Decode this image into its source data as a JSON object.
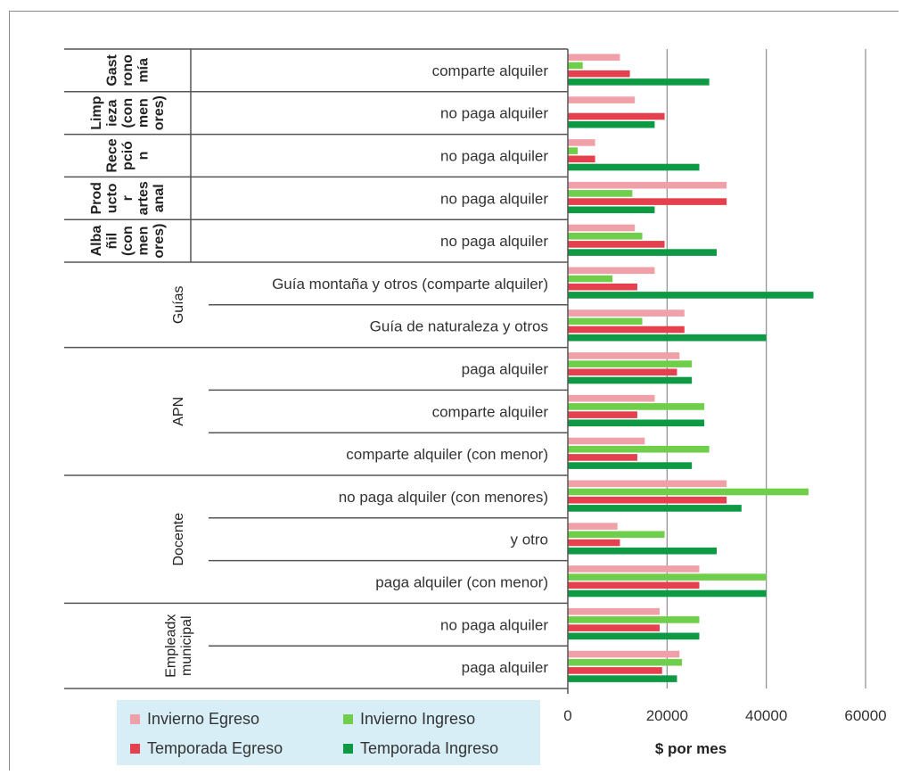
{
  "chart_data": {
    "type": "bar",
    "orientation": "horizontal",
    "xlabel": "$ por mes",
    "xlim": [
      0,
      60000
    ],
    "xticks": [
      0,
      20000,
      40000,
      60000
    ],
    "grid": true,
    "legend_placement": "bottom-left",
    "groups": [
      {
        "label": "Gast rono mía",
        "lines": [
          "Gast",
          "rono",
          "mía"
        ],
        "rows": 1
      },
      {
        "label": "Limp ieza (con men ores)",
        "lines": [
          "Limp",
          "ieza",
          "(con",
          "men",
          "ores)"
        ],
        "rows": 1
      },
      {
        "label": "Rece pció n",
        "lines": [
          "Rece",
          "pció",
          "n"
        ],
        "rows": 1
      },
      {
        "label": "Prod ucto r artes anal",
        "lines": [
          "Prod",
          "ucto",
          "r",
          "artes",
          "anal"
        ],
        "rows": 1
      },
      {
        "label": "Alba ñil (con men ores)",
        "lines": [
          "Alba",
          "ñil",
          "(con",
          "men",
          "ores)"
        ],
        "rows": 1
      },
      {
        "label": "Guías",
        "lines": [
          "Guías"
        ],
        "rows": 2
      },
      {
        "label": "APN",
        "lines": [
          "APN"
        ],
        "rows": 3
      },
      {
        "label": "Docente",
        "lines": [
          "Docente"
        ],
        "rows": 3
      },
      {
        "label": "Empleadx municipal",
        "lines": [
          "Empleadx",
          "municipal"
        ],
        "rows": 2
      }
    ],
    "categories": [
      "comparte alquiler",
      "no paga alquiler",
      "no paga alquiler",
      "no paga alquiler",
      "no paga alquiler",
      "Guía montaña y otros (comparte alquiler)",
      "Guía de naturaleza y otros",
      "paga alquiler",
      "comparte alquiler",
      "comparte alquiler (con menor)",
      "no paga alquiler (con menores)",
      "y otro",
      "paga alquiler (con menor)",
      "no paga alquiler",
      "paga alquiler"
    ],
    "series": [
      {
        "name": "Invierno Egreso",
        "color": "#f0a0a8",
        "values": [
          10500,
          13500,
          5500,
          32000,
          13500,
          17500,
          23500,
          22500,
          17500,
          15500,
          32000,
          10000,
          26500,
          18500,
          22500
        ]
      },
      {
        "name": "Invierno Ingreso",
        "color": "#6fce4a",
        "values": [
          3000,
          0,
          2000,
          13000,
          15000,
          9000,
          15000,
          25000,
          27500,
          28500,
          48500,
          19500,
          40000,
          26500,
          23000
        ]
      },
      {
        "name": "Temporada Egreso",
        "color": "#e5404e",
        "values": [
          12500,
          19500,
          5500,
          32000,
          19500,
          14000,
          23500,
          22000,
          14000,
          14000,
          32000,
          10500,
          26500,
          18500,
          19000
        ]
      },
      {
        "name": "Temporada Ingreso",
        "color": "#0e9a45",
        "values": [
          28500,
          17500,
          26500,
          17500,
          30000,
          49500,
          40000,
          25000,
          27500,
          25000,
          35000,
          30000,
          40000,
          26500,
          22000
        ]
      }
    ]
  }
}
